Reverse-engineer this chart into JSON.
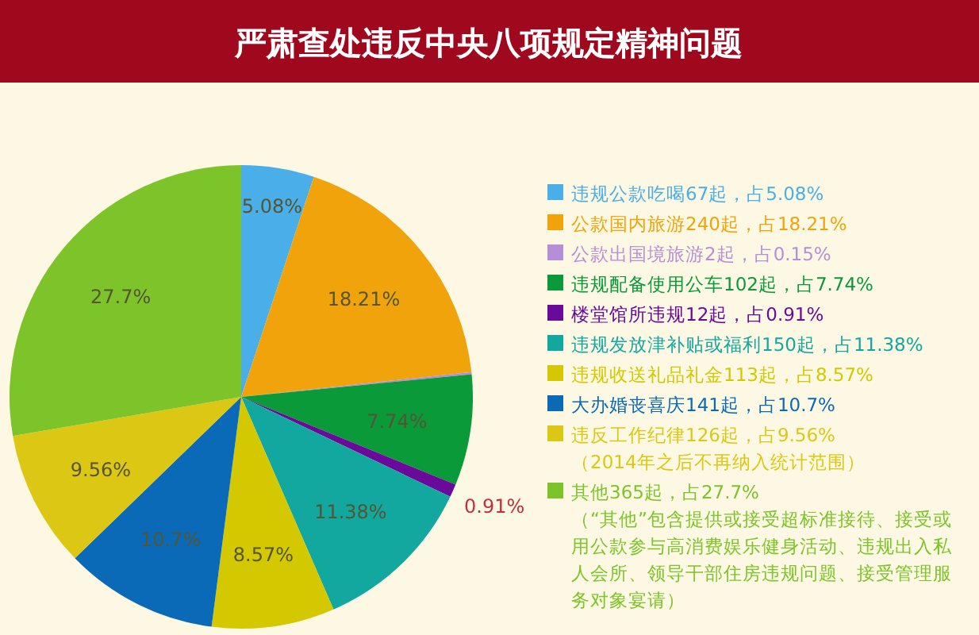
{
  "chart_data": {
    "type": "pie",
    "title": "严肃查处违反中央八项规定精神问题",
    "categories": [
      "违规公款吃喝67起，占5.08%",
      "公款国内旅游240起，占18.21%",
      "公款出国境旅游2起，占0.15%",
      "违规配备使用公车102起，占7.74%",
      "楼堂馆所违规12起，占0.91%",
      "违规发放津补贴或福利150起，占11.38%",
      "违规收送礼品礼金113起，占8.57%",
      "大办婚丧喜庆141起，占10.7%",
      "违反工作纪律126起，占9.56%\n（2014年之后不再纳入统计范围）",
      "其他365起，占27.7%\n（“其他”包含提供或接受超标准接待、接受或用公款参与高消费娱乐健身活动、违规出入私人会所、领导干部住房违规问题、接受管理服务对象宴请）"
    ],
    "values": [
      5.08,
      18.21,
      0.15,
      7.74,
      0.91,
      11.38,
      8.57,
      10.7,
      9.56,
      27.7
    ],
    "colors": [
      "#4aaee8",
      "#f0a30a",
      "#b48fd8",
      "#0a9a3a",
      "#6a0a9a",
      "#12a8a0",
      "#d4c800",
      "#0a6ab8",
      "#dcc814",
      "#7dc42a"
    ],
    "value_labels": [
      "5.08%",
      "18.21%",
      null,
      "7.74%",
      "0.91%",
      "11.38%",
      "8.57%",
      "10.7%",
      "9.56%",
      "27.7%"
    ],
    "legend": "right"
  }
}
